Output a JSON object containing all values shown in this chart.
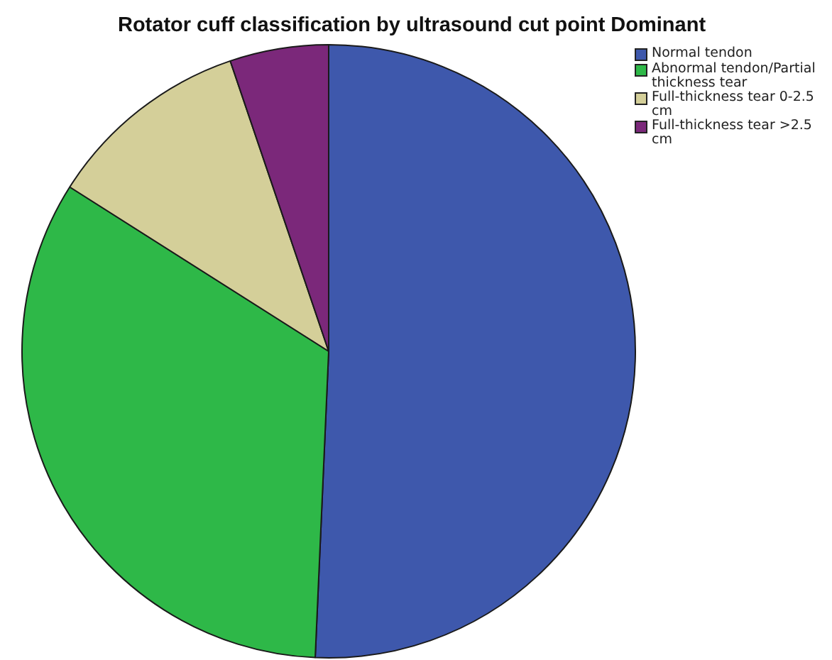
{
  "chart_data": {
    "type": "pie",
    "title": "Rotator cuff classification by ultrasound cut point Dominant",
    "categories": [
      "Normal tendon",
      "Abnormal tendon/Partial thickness tear",
      "Full-thickness tear 0-2.5 cm",
      "Full-thickness tear >2.5 cm"
    ],
    "values": [
      50.7,
      33.3,
      10.8,
      5.2
    ],
    "colors": [
      "#3e58ac",
      "#2eb848",
      "#d4cf99",
      "#7b287a"
    ],
    "legend": "top right"
  }
}
